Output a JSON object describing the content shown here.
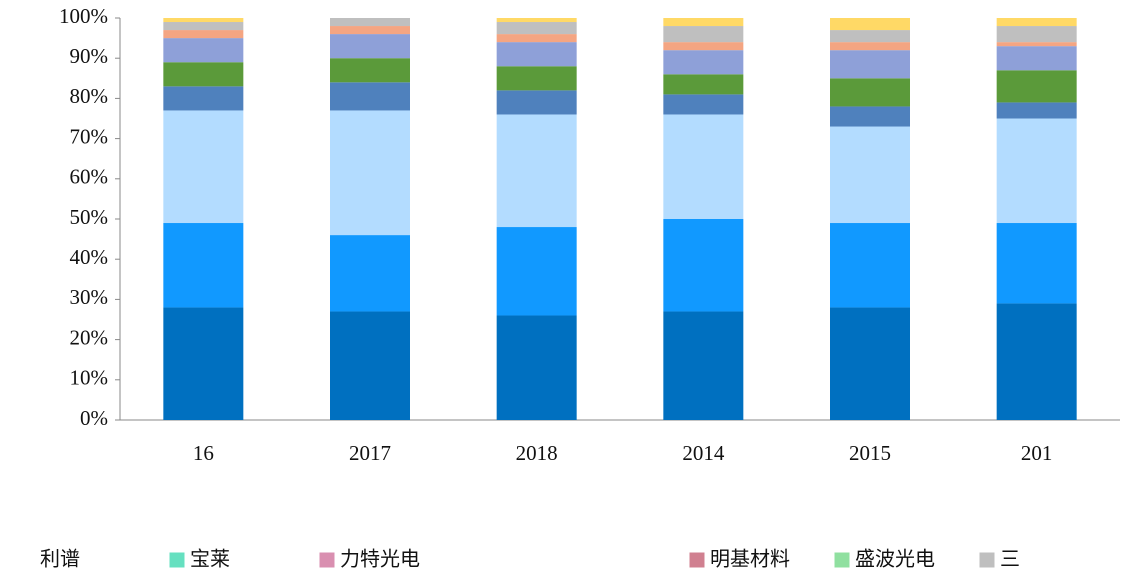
{
  "chart_data": {
    "type": "stacked_bar",
    "categories": [
      "16",
      "2017",
      "2018",
      "2014",
      "2015",
      "201"
    ],
    "ylim": [
      0,
      100
    ],
    "yticks": [
      {
        "value": 0,
        "label": "0%"
      },
      {
        "value": 10,
        "label": "10%"
      },
      {
        "value": 20,
        "label": "20%"
      },
      {
        "value": 30,
        "label": "30%"
      },
      {
        "value": 40,
        "label": "40%"
      },
      {
        "value": 50,
        "label": "50%"
      },
      {
        "value": 60,
        "label": "60%"
      },
      {
        "value": 70,
        "label": "70%"
      },
      {
        "value": 80,
        "label": "80%"
      },
      {
        "value": 90,
        "label": "90%"
      },
      {
        "value": 100,
        "label": "100%"
      }
    ],
    "series": [
      {
        "color": "#0070c0",
        "values": [
          28,
          27,
          26,
          27,
          28,
          29
        ]
      },
      {
        "color": "#1199ff",
        "values": [
          21,
          19,
          22,
          23,
          21,
          20
        ]
      },
      {
        "color": "#b3dcff",
        "values": [
          28,
          31,
          28,
          26,
          24,
          26
        ]
      },
      {
        "color": "#4f81bd",
        "values": [
          6,
          7,
          6,
          5,
          5,
          4
        ]
      },
      {
        "color": "#5b9a3a",
        "values": [
          6,
          6,
          6,
          5,
          7,
          8
        ]
      },
      {
        "color": "#8ea0d8",
        "values": [
          6,
          6,
          6,
          6,
          7,
          6
        ]
      },
      {
        "color": "#f4a582",
        "values": [
          2,
          2,
          2,
          2,
          2,
          1
        ]
      },
      {
        "color": "#bfbfbf",
        "values": [
          2,
          2,
          3,
          4,
          3,
          4
        ]
      },
      {
        "color": "#ffd966",
        "values": [
          1,
          0,
          1,
          2,
          3,
          2
        ]
      }
    ],
    "legend": [
      {
        "name": "利谱",
        "color": "#ffffff"
      },
      {
        "name": "宝莱",
        "color": "#66e0c0"
      },
      {
        "name": "力特光电",
        "color": "#d98fb0"
      },
      {
        "name": "明基材料",
        "color": "#d08090"
      },
      {
        "name": "盛波光电",
        "color": "#90e0a0"
      },
      {
        "name": "三",
        "color": "#bfbfbf"
      }
    ]
  }
}
